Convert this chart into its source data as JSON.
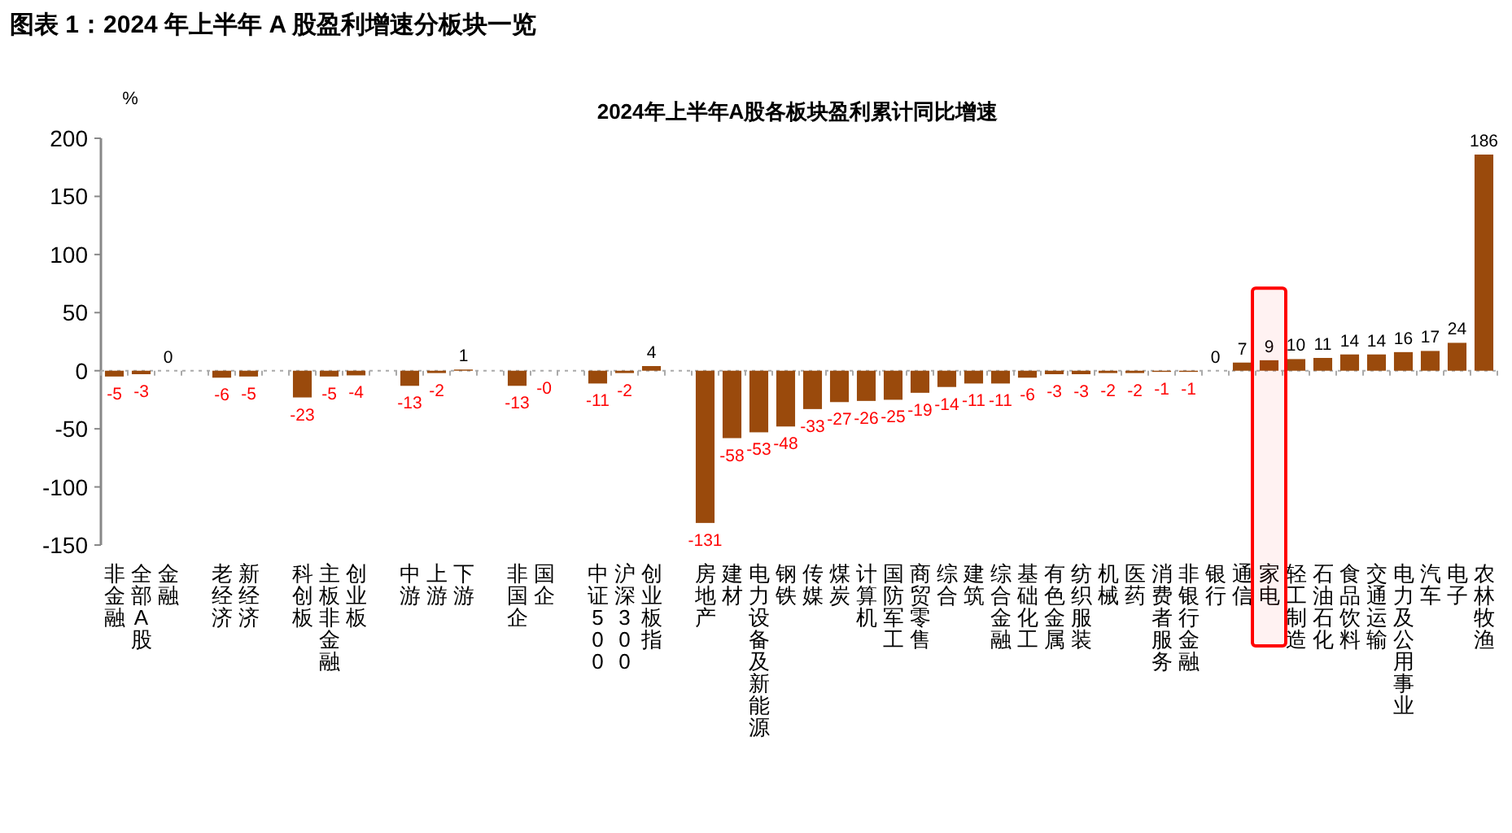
{
  "chart_data": {
    "type": "bar",
    "title": "图表 1：2024 年上半年 A 股盈利增速分板块一览",
    "subtitle": "2024年上半年A股各板块盈利累计同比增速",
    "ylabel": "%",
    "categories": [
      "非金融",
      "全部A股",
      "金融",
      null,
      "老经济",
      "新经济",
      null,
      "科创板",
      "主板非金融",
      "创业板",
      null,
      "中游",
      "上游",
      "下游",
      null,
      "非国企",
      "国企",
      null,
      "中证500",
      "沪深300",
      "创业板指",
      null,
      "房地产",
      "建材",
      "电力设备及新能源",
      "钢铁",
      "传媒",
      "煤炭",
      "计算机",
      "国防军工",
      "商贸零售",
      "综合",
      "建筑",
      "综合金融",
      "基础化工",
      "有色金属",
      "纺织服装",
      "机械",
      "医药",
      "消费者服务",
      "非银行金融",
      "银行",
      "通信",
      "家电",
      "轻工制造",
      "石油石化",
      "食品饮料",
      "交通运输",
      "电力及公用事业",
      "汽车",
      "电子",
      "农林牧渔"
    ],
    "values": [
      -5,
      -3,
      0,
      null,
      -6,
      -5,
      null,
      -23,
      -5,
      -4,
      null,
      -13,
      -2,
      1,
      null,
      -13,
      0,
      null,
      -11,
      -2,
      4,
      null,
      -131,
      -58,
      -53,
      -48,
      -33,
      -27,
      -26,
      -25,
      -19,
      -14,
      -11,
      -11,
      -6,
      -3,
      -3,
      -2,
      -2,
      -1,
      -1,
      0,
      7,
      9,
      10,
      11,
      14,
      14,
      16,
      17,
      24,
      186
    ],
    "value_labels": [
      "-5",
      "-3",
      "0",
      null,
      "-6",
      "-5",
      null,
      "-23",
      "-5",
      "-4",
      null,
      "-13",
      "-2",
      "1",
      null,
      "-13",
      "-0",
      null,
      "-11",
      "-2",
      "4",
      null,
      "-131",
      "-58",
      "-53",
      "-48",
      "-33",
      "-27",
      "-26",
      "-25",
      "-19",
      "-14",
      "-11",
      "-11",
      "-6",
      "-3",
      "-3",
      "-2",
      "-2",
      "-1",
      "-1",
      "0",
      "7",
      "9",
      "10",
      "11",
      "14",
      "14",
      "16",
      "17",
      "24",
      "186"
    ],
    "color": "#9a4a0c",
    "ylim": [
      -150,
      200
    ],
    "yticks": [
      -150,
      -100,
      -50,
      0,
      50,
      100,
      150,
      200
    ],
    "bands": [
      {
        "axis": "x",
        "from": "家电",
        "to": "家电",
        "color": "#ff0000"
      }
    ],
    "ref_lines": [
      {
        "axis": "y",
        "value": 0,
        "color": "#aaaaaa",
        "line_style": "dotted"
      }
    ]
  }
}
